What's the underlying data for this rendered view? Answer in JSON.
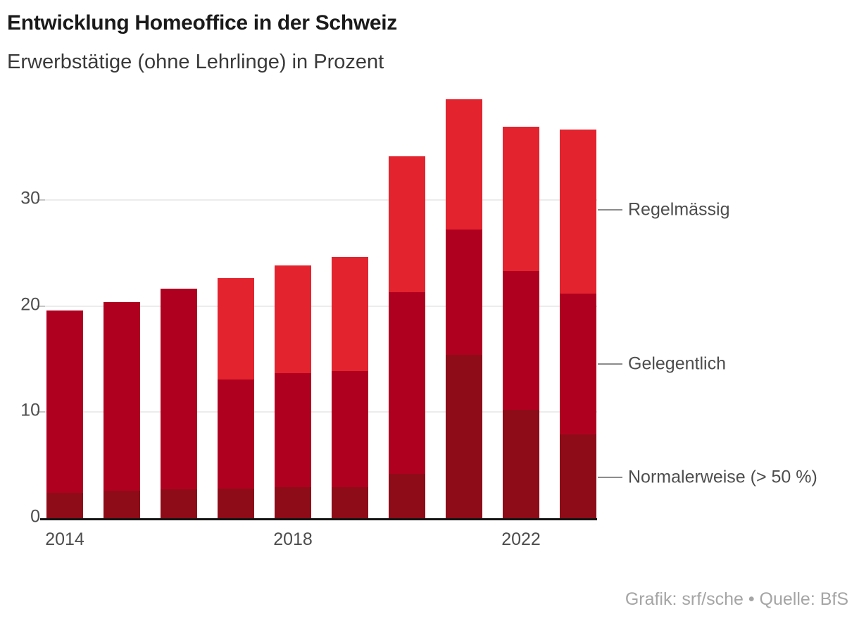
{
  "header": {
    "title": "Entwicklung Homeoffice in der Schweiz",
    "subtitle": "Erwerbstätige (ohne Lehrlinge) in Prozent"
  },
  "legend": {
    "items": [
      {
        "id": "regelmaessig",
        "label": "Regelmässig",
        "color": "#e3232e"
      },
      {
        "id": "gelegentlich",
        "label": "Gelegentlich",
        "color": "#b00020"
      },
      {
        "id": "normalerweise",
        "label": "Normalerweise (> 50 %)",
        "color": "#8d0c18"
      }
    ]
  },
  "footer": {
    "credit": "Grafik: srf/sche • Quelle: BfS"
  },
  "colors": {
    "regelmaessig": "#e3232e",
    "gelegentlich": "#b00020",
    "normalerweise": "#8d0c18",
    "grid": "#ececec",
    "axis": "#141414",
    "tick_text": "#4d4d4d",
    "leader_line": "#8c8c8c",
    "credit_text": "#a5a5a5"
  },
  "chart_data": {
    "type": "bar",
    "stacked": true,
    "title": "Entwicklung Homeoffice in der Schweiz",
    "subtitle": "Erwerbstätige (ohne Lehrlinge) in Prozent",
    "unit": "Prozent",
    "categories": [
      2014,
      2015,
      2016,
      2017,
      2018,
      2019,
      2020,
      2021,
      2022,
      2023
    ],
    "series": [
      {
        "name": "Normalerweise (> 50 %)",
        "color": "#8d0c18",
        "values": [
          2.4,
          2.6,
          2.7,
          2.8,
          2.9,
          2.9,
          4.2,
          15.4,
          10.2,
          7.9
        ]
      },
      {
        "name": "Gelegentlich",
        "color": "#b00020",
        "values": [
          17.2,
          17.8,
          18.9,
          10.3,
          10.8,
          11.0,
          17.1,
          11.8,
          13.1,
          13.3
        ]
      },
      {
        "name": "Regelmässig",
        "color": "#e3232e",
        "values": [
          0,
          0,
          0,
          9.5,
          10.1,
          10.7,
          12.8,
          12.3,
          13.6,
          15.4
        ]
      }
    ],
    "totals": [
      19.6,
      20.4,
      21.6,
      22.6,
      23.8,
      24.6,
      34.1,
      39.5,
      36.9,
      36.6
    ],
    "yticks": [
      0,
      10,
      20,
      30
    ],
    "xtick_labels": [
      "2014",
      "2018",
      "2022"
    ],
    "xtick_category_indices": [
      0,
      4,
      8
    ],
    "ylim": [
      0,
      40
    ],
    "grid": "horizontal",
    "legend_position": "right-annotations",
    "annotation_values_y": [
      29,
      14.5,
      3.9
    ]
  }
}
